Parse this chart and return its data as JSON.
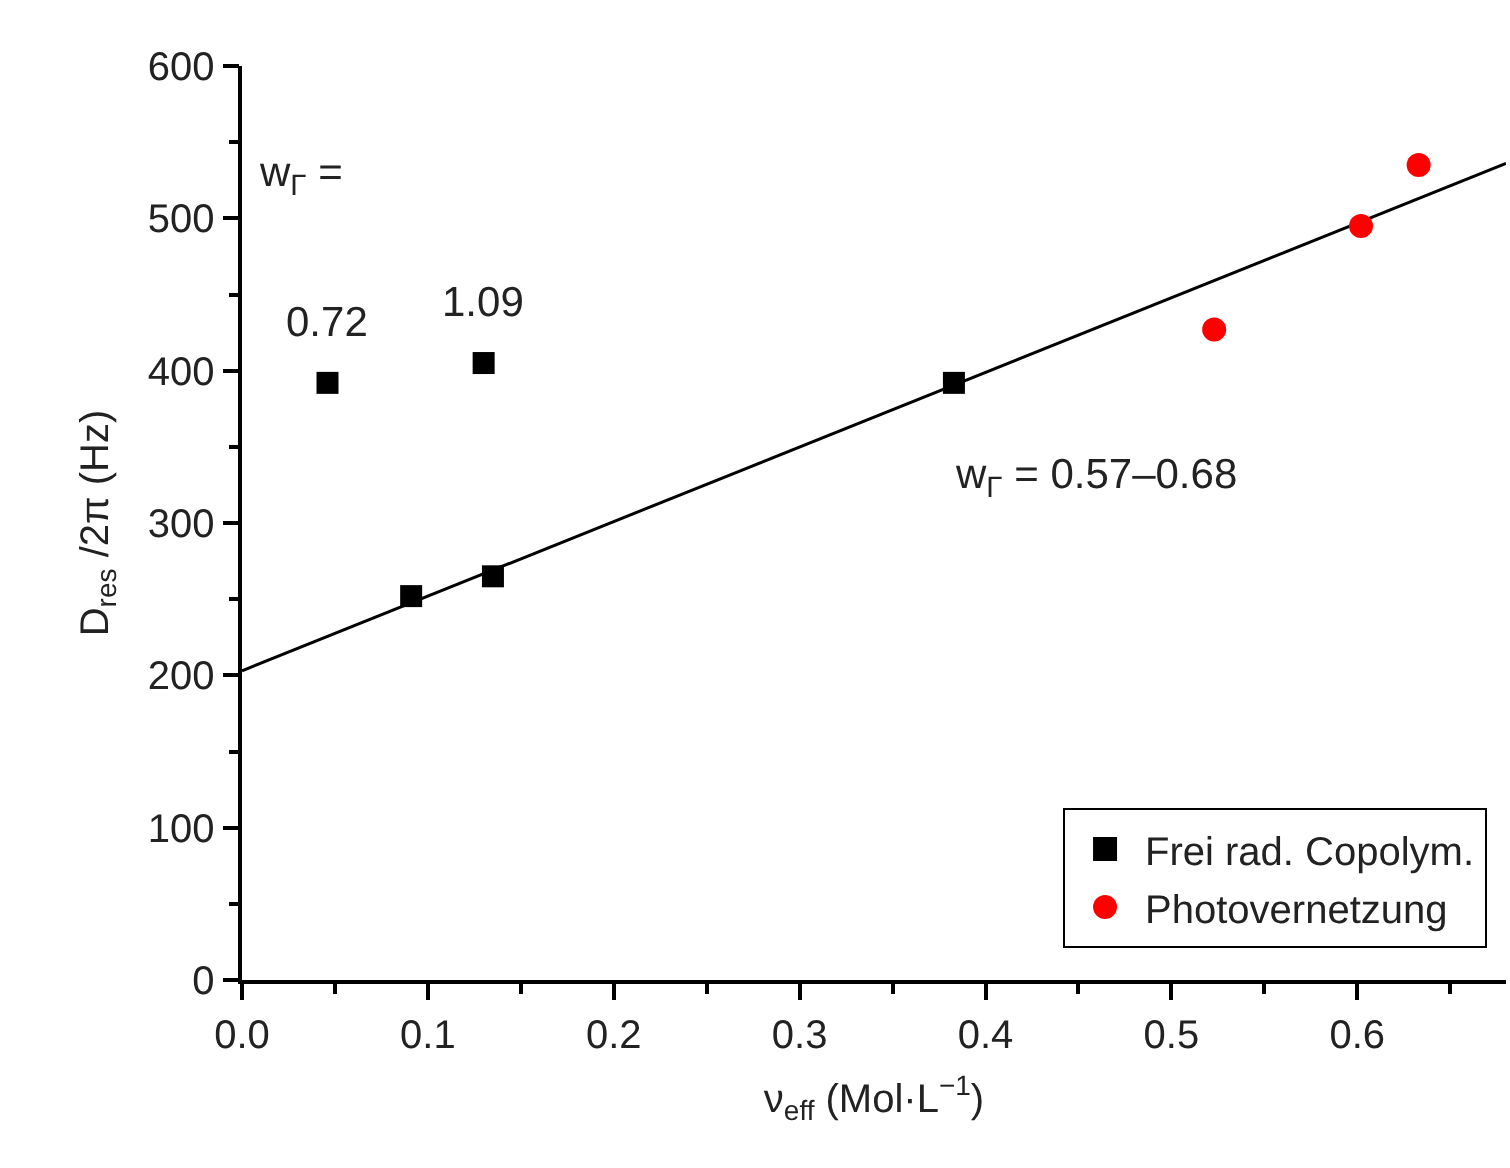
{
  "chart_data": {
    "type": "scatter",
    "xlabel": "ν$_{eff}$ (Mol·L$^{−1}$)",
    "ylabel": "D$_{res}$ /2π (Hz)",
    "xlim": [
      0,
      0.68
    ],
    "xticks": [
      {
        "value": 0,
        "label": "0.0"
      },
      0.1,
      0.2,
      0.3,
      0.4,
      0.5,
      0.6
    ],
    "ylim": [
      0,
      600
    ],
    "yticks": [
      0,
      100,
      200,
      300,
      400,
      500,
      600
    ],
    "grid": false,
    "legend": "bottom right",
    "series": [
      {
        "name": "Frei rad. Copolym.",
        "color": "#000000",
        "marker": "square",
        "x": [
          0.046,
          0.091,
          0.13,
          0.135,
          0.383
        ],
        "values": [
          392,
          252,
          405,
          265,
          392
        ]
      },
      {
        "name": "Photovernetzung",
        "color": "#ff0000",
        "marker": "circle",
        "x": [
          0.523,
          0.602,
          0.633
        ],
        "values": [
          427,
          495,
          535
        ]
      },
      {
        "type": "line",
        "color": "#000000",
        "line_style": "solid",
        "x": [
          0,
          0.68
        ],
        "values": [
          203,
          536
        ]
      }
    ],
    "annotations": [
      "w$_{Γ}$ =",
      {
        "text": "0.72",
        "x": 0.046,
        "y": 392
      },
      {
        "text": "1.09",
        "x": 0.13,
        "y": 405
      },
      "w$_{Γ}$ = 0.57–0.68"
    ]
  }
}
